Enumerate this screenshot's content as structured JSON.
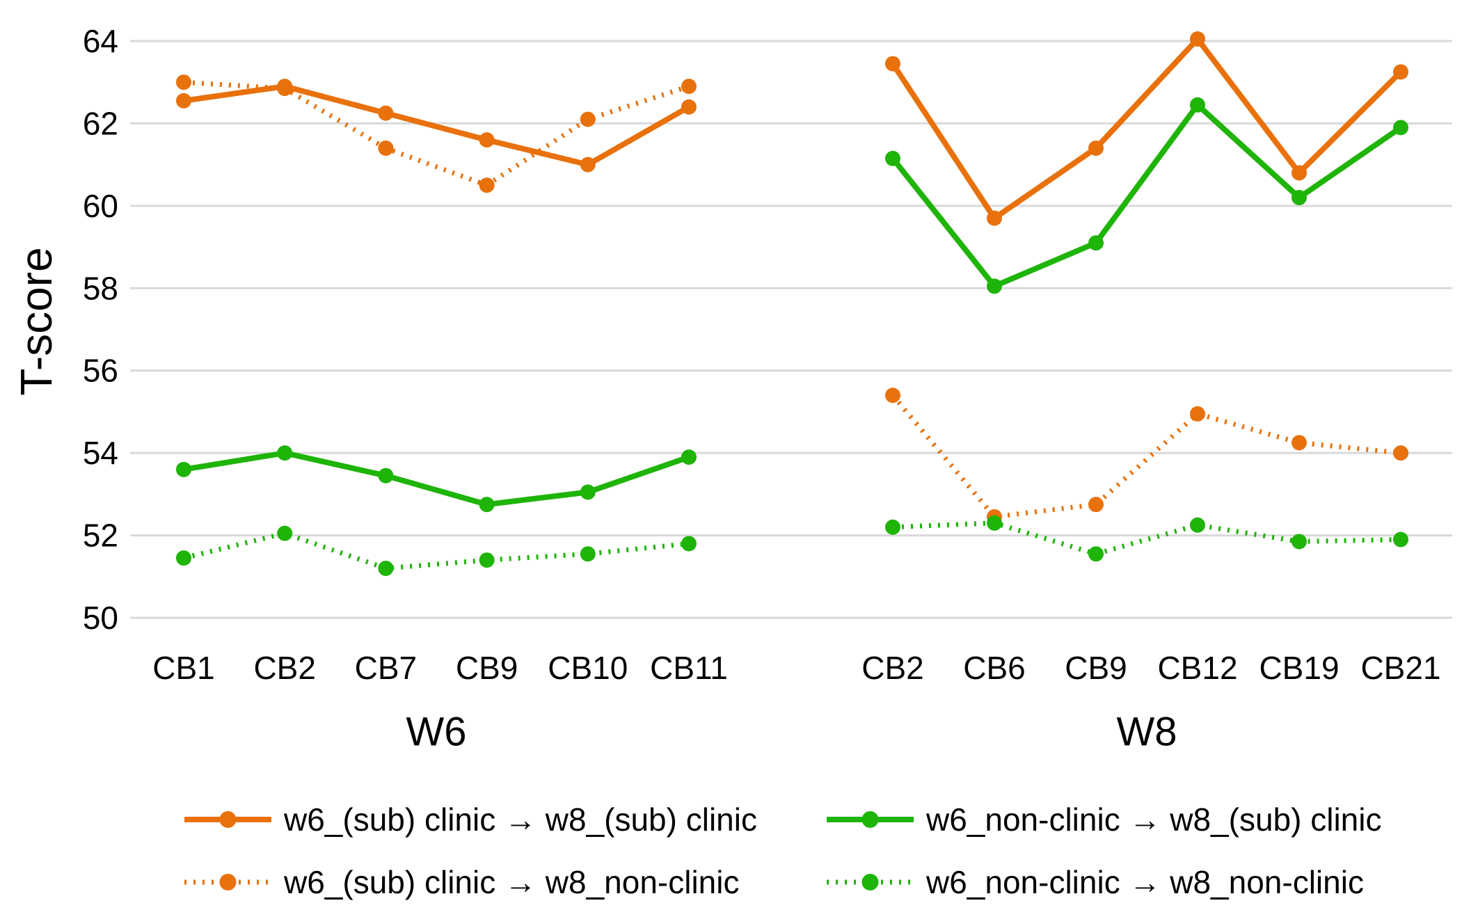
{
  "chart_data": {
    "type": "line",
    "title": "",
    "xlabel": "",
    "ylabel": "T-score",
    "ylim": [
      49.6,
      64.6
    ],
    "yticks": [
      50,
      52,
      54,
      56,
      58,
      60,
      62,
      64
    ],
    "grid": true,
    "legend_position": "bottom",
    "colors": {
      "orange": "#e8710c",
      "green": "#1eb408",
      "gridline": "#d9d9d9",
      "text": "#000000",
      "arrow": "#777777"
    },
    "panels": [
      {
        "label": "W6",
        "categories": [
          "CB1",
          "CB2",
          "CB7",
          "CB9",
          "CB10",
          "CB11"
        ],
        "series": [
          {
            "name": "w6_(sub) clinic → w8_(sub) clinic",
            "color": "orange",
            "style": "solid",
            "values": [
              62.55,
              62.9,
              62.25,
              61.6,
              61.0,
              62.4
            ]
          },
          {
            "name": "w6_(sub) clinic → w8_non-clinic",
            "color": "orange",
            "style": "dotted",
            "values": [
              63.0,
              62.85,
              61.4,
              60.5,
              62.1,
              62.9
            ]
          },
          {
            "name": "w6_non-clinic → w8_(sub) clinic",
            "color": "green",
            "style": "solid",
            "values": [
              53.6,
              54.0,
              53.45,
              52.75,
              53.05,
              53.9
            ]
          },
          {
            "name": "w6_non-clinic → w8_non-clinic",
            "color": "green",
            "style": "dotted",
            "values": [
              51.45,
              52.05,
              51.2,
              51.4,
              51.55,
              51.8
            ]
          }
        ]
      },
      {
        "label": "W8",
        "categories": [
          "CB2",
          "CB6",
          "CB9",
          "CB12",
          "CB19",
          "CB21"
        ],
        "series": [
          {
            "name": "w6_(sub) clinic → w8_(sub) clinic",
            "color": "orange",
            "style": "solid",
            "values": [
              63.45,
              59.7,
              61.4,
              64.05,
              60.8,
              63.25
            ]
          },
          {
            "name": "w6_(sub) clinic → w8_non-clinic",
            "color": "orange",
            "style": "dotted",
            "values": [
              55.4,
              52.45,
              52.75,
              54.95,
              54.25,
              54.0
            ]
          },
          {
            "name": "w6_non-clinic → w8_(sub) clinic",
            "color": "green",
            "style": "solid",
            "values": [
              61.15,
              58.05,
              59.1,
              62.45,
              60.2,
              61.9
            ]
          },
          {
            "name": "w6_non-clinic → w8_non-clinic",
            "color": "green",
            "style": "dotted",
            "values": [
              52.2,
              52.3,
              51.55,
              52.25,
              51.85,
              51.9
            ]
          }
        ]
      }
    ],
    "legend": {
      "entries": [
        {
          "label": "w6_(sub) clinic → w8_(sub) clinic",
          "color": "orange",
          "style": "solid"
        },
        {
          "label": "w6_(sub) clinic → w8_non-clinic",
          "color": "orange",
          "style": "dotted"
        },
        {
          "label": "w6_non-clinic → w8_(sub) clinic",
          "color": "green",
          "style": "solid"
        },
        {
          "label": "w6_non-clinic → w8_non-clinic",
          "color": "green",
          "style": "dotted"
        }
      ]
    }
  }
}
